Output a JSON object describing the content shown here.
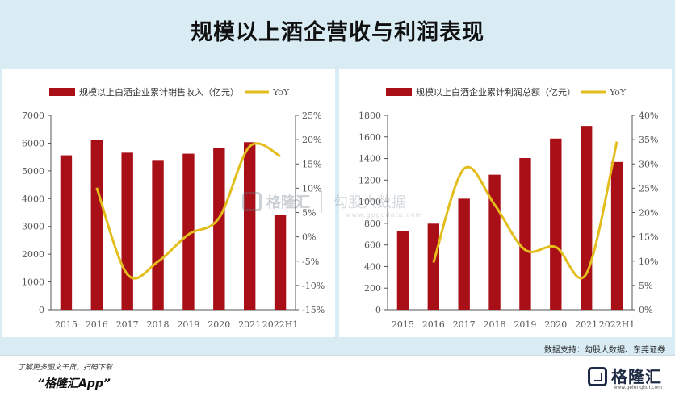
{
  "title": "规模以上酒企营收与利润表现",
  "source": "数据支持：勾股大数据、东莞证券",
  "footer": {
    "promo": "了解更多图文干货，扫码下载",
    "app_name": "“格隆汇App”",
    "logo_name": "格隆汇",
    "logo_url": "www.gelonghui.com"
  },
  "watermark": {
    "brand": "格隆汇",
    "text": "勾股大数据",
    "url": "www.gogudata.com"
  },
  "colors": {
    "bar": "#a90f17",
    "line": "#e3bd1b",
    "background": "#d9ecf4"
  },
  "chart_data": [
    {
      "type": "bar",
      "categories": [
        "2015",
        "2016",
        "2017",
        "2018",
        "2019",
        "2020",
        "2021",
        "2022H1"
      ],
      "series": [
        {
          "name": "规模以上白酒企业累计销售收入（亿元）",
          "type": "bar",
          "axis": "left",
          "values": [
            5560,
            6125,
            5654,
            5364,
            5618,
            5836,
            6033,
            3428
          ]
        },
        {
          "name": "YoY",
          "type": "line",
          "axis": "right",
          "values": [
            null,
            10.1,
            -7.7,
            -5.1,
            0.5,
            3.9,
            18.6,
            16.6
          ]
        }
      ],
      "ylim": [
        0,
        7000
      ],
      "yticks": [
        "0",
        "1000",
        "2000",
        "3000",
        "4000",
        "5000",
        "6000",
        "7000"
      ],
      "y2lim": [
        -15,
        25
      ],
      "y2ticks": [
        "-15%",
        "-10%",
        "-5%",
        "0%",
        "5%",
        "10%",
        "15%",
        "20%",
        "25%"
      ],
      "legend": "top"
    },
    {
      "type": "bar",
      "categories": [
        "2015",
        "2016",
        "2017",
        "2018",
        "2019",
        "2020",
        "2021",
        "2022H1"
      ],
      "series": [
        {
          "name": "规模以上白酒企业累计利润总额（亿元）",
          "type": "bar",
          "axis": "left",
          "values": [
            727,
            797,
            1028,
            1250,
            1404,
            1585,
            1702,
            1368
          ]
        },
        {
          "name": "YoY",
          "type": "line",
          "axis": "right",
          "values": [
            null,
            9.7,
            29,
            21.6,
            12.3,
            12.9,
            7.4,
            34.6
          ]
        }
      ],
      "ylim": [
        0,
        1800
      ],
      "yticks": [
        "0",
        "200",
        "400",
        "600",
        "800",
        "1000",
        "1200",
        "1400",
        "1600",
        "1800"
      ],
      "y2lim": [
        0,
        40
      ],
      "y2ticks": [
        "0%",
        "5%",
        "10%",
        "15%",
        "20%",
        "25%",
        "30%",
        "35%",
        "40%"
      ],
      "legend": "top"
    }
  ]
}
